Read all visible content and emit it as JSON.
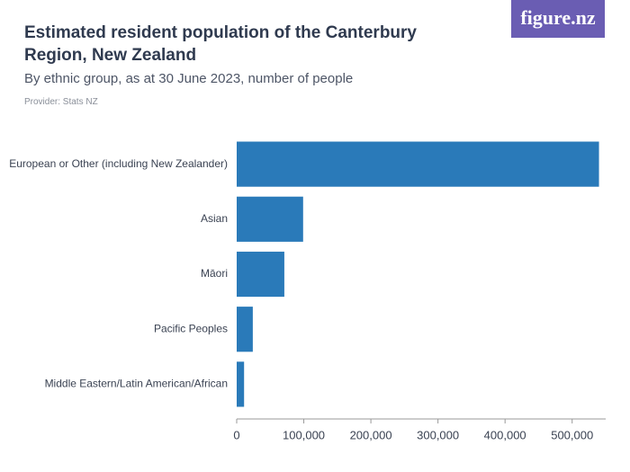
{
  "chart_data": {
    "type": "bar",
    "orientation": "horizontal",
    "title": "Estimated resident population of the Canterbury Region, New Zealand",
    "subtitle": "By ethnic group, as at 30 June 2023, number of people",
    "source": "Provider: Stats NZ",
    "logo": "figure.nz",
    "categories": [
      "European or Other (including New Zealander)",
      "Asian",
      "Māori",
      "Pacific Peoples",
      "Middle Eastern/Latin American/African"
    ],
    "values": [
      540000,
      99000,
      71000,
      24000,
      11000
    ],
    "color": "#2a7ab9",
    "xlim": [
      0,
      550000
    ],
    "xticks": [
      0,
      {
        "value": 100000,
        "label": "100,000"
      },
      {
        "value": 200000,
        "label": "200,000"
      },
      {
        "value": 300000,
        "label": "300,000"
      },
      {
        "value": 400000,
        "label": "400,000"
      },
      {
        "value": 500000,
        "label": "500,000"
      }
    ],
    "grid": false
  }
}
